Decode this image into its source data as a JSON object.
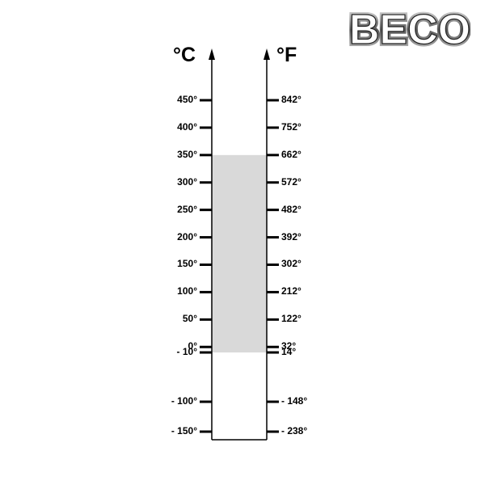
{
  "logo": {
    "text": "BECO"
  },
  "scale": {
    "left_unit": "°C",
    "right_unit": "°F",
    "ticks": [
      {
        "c": "450°",
        "f": "842°",
        "value_c": 450
      },
      {
        "c": "400°",
        "f": "752°",
        "value_c": 400
      },
      {
        "c": "350°",
        "f": "662°",
        "value_c": 350
      },
      {
        "c": "300°",
        "f": "572°",
        "value_c": 300
      },
      {
        "c": "250°",
        "f": "482°",
        "value_c": 250
      },
      {
        "c": "200°",
        "f": "392°",
        "value_c": 200
      },
      {
        "c": "150°",
        "f": "302°",
        "value_c": 150
      },
      {
        "c": "100°",
        "f": "212°",
        "value_c": 100
      },
      {
        "c": "50°",
        "f": "122°",
        "value_c": 50
      },
      {
        "c": "0°",
        "f": "32°",
        "value_c": 0
      },
      {
        "c": "- 10°",
        "f": "14°",
        "value_c": -10
      },
      {
        "c": "- 100°",
        "f": "- 148°",
        "value_c": -100
      },
      {
        "c": "- 150°",
        "f": "- 238°",
        "value_c": -150
      }
    ],
    "range_c": [
      -10,
      350
    ],
    "range_color": "#d9d9d9"
  }
}
